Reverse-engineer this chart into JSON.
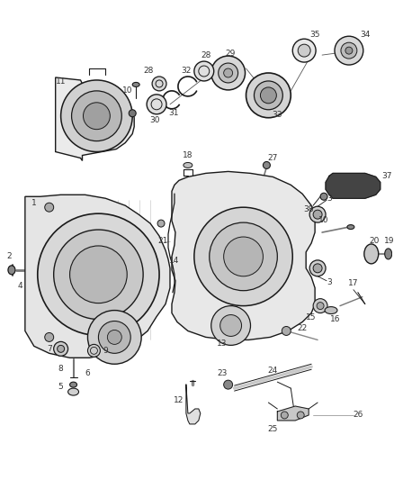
{
  "bg_color": "#ffffff",
  "fig_width": 4.38,
  "fig_height": 5.33,
  "dpi": 100,
  "dark": "#1a1a1a",
  "med": "#555555",
  "lt": "#999999",
  "label_fs": 6.5,
  "label_color": "#333333"
}
